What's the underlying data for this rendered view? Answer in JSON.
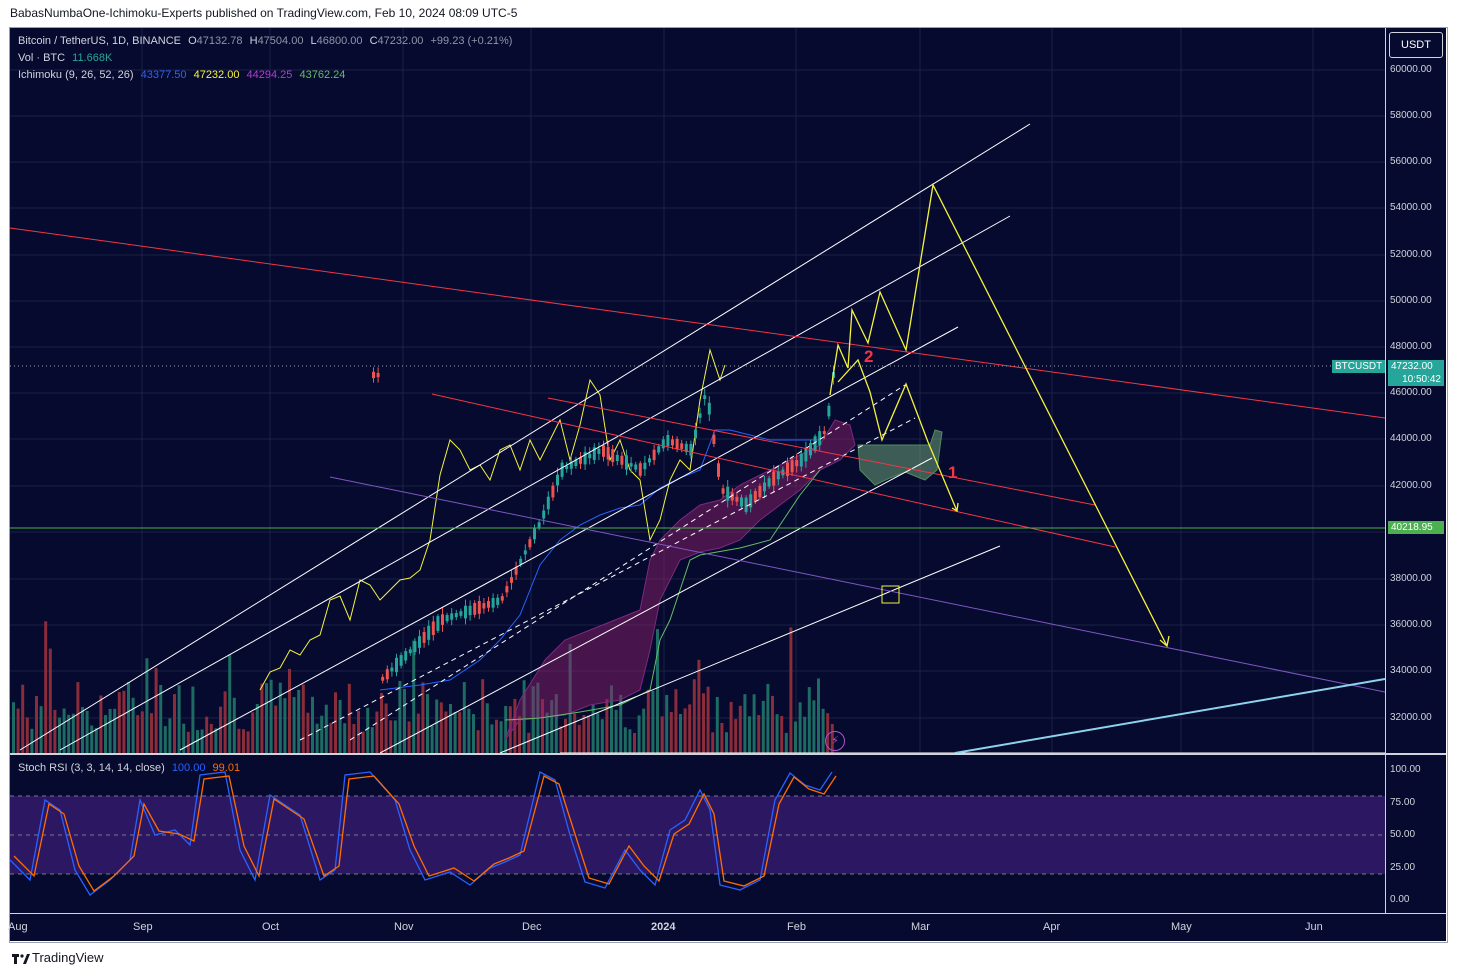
{
  "publisher_line": "BabasNumbaOne-Ichimoku-Experts published on TradingView.com, Feb 10, 2024 08:09 UTC-5",
  "currency_button": "USDT",
  "legend": {
    "symbol": "Bitcoin / TetherUS, 1D, BINANCE",
    "o_label": "O",
    "o_value": "47132.78",
    "h_label": "H",
    "h_value": "47504.00",
    "l_label": "L",
    "l_value": "46800.00",
    "c_label": "C",
    "c_value": "47232.00",
    "change": "+99.23 (+0.21%)",
    "vol_label": "Vol · BTC",
    "vol_value": "11.668K",
    "ichimoku_label": "Ichimoku (9, 26, 52, 26)",
    "ichimoku_values": [
      "43377.50",
      "47232.00",
      "44294.25",
      "43762.24"
    ],
    "ichimoku_colors": [
      "#2962ff",
      "#f5f33d",
      "#b63ad6",
      "#66bb6a"
    ]
  },
  "price_axis": [
    "60000.00",
    "58000.00",
    "56000.00",
    "54000.00",
    "52000.00",
    "50000.00",
    "48000.00",
    "46000.00",
    "44000.00",
    "42000.00",
    "40000.00",
    "38000.00",
    "36000.00",
    "34000.00",
    "32000.00"
  ],
  "price_badges": {
    "symbol_tag": "BTCUSDT",
    "last_price": "47232.00",
    "countdown": "10:50:42",
    "level_price": "40218.95",
    "last_color": "#26a69a",
    "level_color": "#4caf50"
  },
  "stoch": {
    "label": "Stoch RSI (3, 3, 14, 14, close)",
    "k_value": "100.00",
    "d_value": "99.01",
    "k_color": "#2962ff",
    "d_color": "#ff6d00",
    "axis": [
      "100.00",
      "75.00",
      "50.00",
      "25.00",
      "0.00"
    ]
  },
  "time_axis": [
    "Aug",
    "Sep",
    "Oct",
    "Nov",
    "Dec",
    "2024",
    "Jan",
    "Feb",
    "Mar",
    "Apr",
    "May",
    "Jun"
  ],
  "wave_labels": [
    "2",
    "1"
  ],
  "footer": "TradingView"
}
